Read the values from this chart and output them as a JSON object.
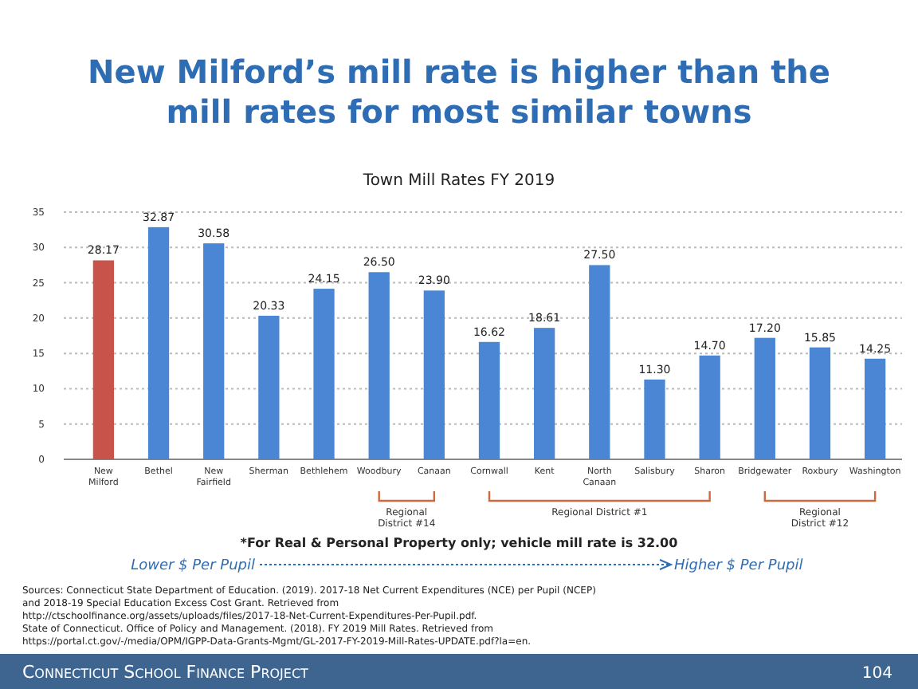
{
  "chart_data": {
    "type": "bar",
    "title": "New Milford’s mill rate is higher than the mill rates for most similar towns",
    "subtitle": "Town Mill Rates FY 2019",
    "categories": [
      "New Milford",
      "Bethel",
      "New Fairfield",
      "Sherman",
      "Bethlehem",
      "Woodbury",
      "Canaan",
      "Cornwall",
      "Kent",
      "North Canaan",
      "Salisbury",
      "Sharon",
      "Bridgewater",
      "Roxbury",
      "Washington"
    ],
    "values": [
      28.17,
      32.87,
      30.58,
      20.33,
      24.15,
      26.5,
      23.9,
      16.62,
      18.61,
      27.5,
      11.3,
      14.7,
      17.2,
      15.85,
      14.25
    ],
    "colors": [
      "#c8534a",
      "#4a86d4",
      "#4a86d4",
      "#4a86d4",
      "#4a86d4",
      "#4a86d4",
      "#4a86d4",
      "#4a86d4",
      "#4a86d4",
      "#4a86d4",
      "#4a86d4",
      "#4a86d4",
      "#4a86d4",
      "#4a86d4",
      "#4a86d4"
    ],
    "ylim": [
      0,
      35
    ],
    "yticks": [
      0,
      5,
      10,
      15,
      20,
      25,
      30,
      35
    ],
    "grid": "y",
    "value_labels": [
      "28.17",
      "32.87",
      "30.58",
      "20.33",
      "24.15",
      "26.50",
      "23.90",
      "16.62",
      "18.61",
      "27.50",
      "11.30",
      "14.70",
      "17.20",
      "15.85",
      "14.25"
    ],
    "annotations": [
      "Regional District #14",
      "Regional District #1",
      "Regional District #12",
      "*For Real & Personal Property only; vehicle mill rate is 32.00",
      "Lower $ Per Pupil",
      "Higher $ Per Pupil",
      "Sources: Connecticut State Department of Education. (2019). 2017-18 Net Current Expenditures (NCE) per Pupil (NCEP) and 2018-19 Special Education Excess Cost Grant. Retrieved from http://ctschoolfinance.org/assets/uploads/files/2017-18-Net-Current-Expenditures-Per-Pupil.pdf.",
      "State of Connecticut. Office of Policy and Management. (2018). FY 2019 Mill Rates. Retrieved from https://portal.ct.gov/-/media/OPM/IGPP-Data-Grants-Mgmt/GL-2017-FY-2019-Mill-Rates-UPDATE.pdf?la=en.",
      "Connecticut School Finance Project",
      "104"
    ]
  }
}
